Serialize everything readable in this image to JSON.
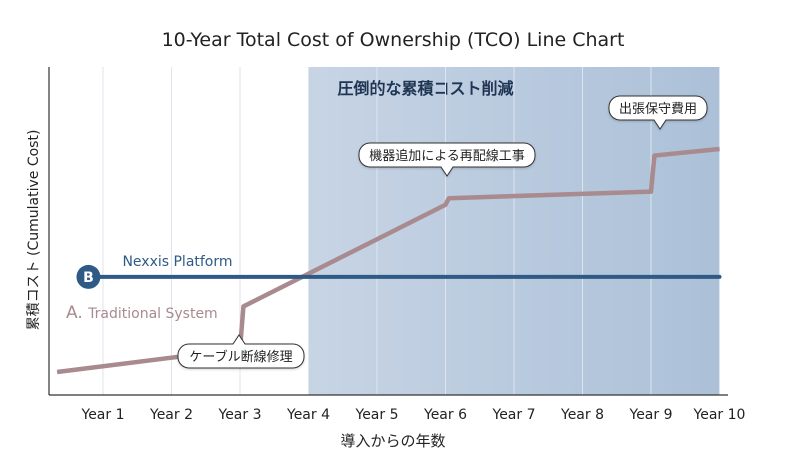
{
  "chart_data": {
    "type": "line",
    "title": "10-Year Total Cost of Ownership (TCO) Line Chart",
    "xlabel": "導入からの年数",
    "ylabel": "累積コスト (Cumulative Cost)",
    "categories": [
      "Year 1",
      "Year 2",
      "Year 3",
      "Year 4",
      "Year 5",
      "Year 6",
      "Year 7",
      "Year 8",
      "Year 9",
      "Year 10"
    ],
    "xlim": [
      0.33,
      10
    ],
    "ylim": [
      0,
      100
    ],
    "grid": "vertical",
    "series": [
      {
        "name": "Nexxis Platform",
        "marker": "B",
        "color": "#2f5a85",
        "points": [
          [
            0.7,
            36
          ],
          [
            10,
            36
          ]
        ]
      },
      {
        "name": "Traditional System",
        "marker": "A.",
        "color": "#a88a8f",
        "points": [
          [
            0.33,
            7
          ],
          [
            3.0,
            14
          ],
          [
            3.05,
            27
          ],
          [
            6.0,
            58
          ],
          [
            6.05,
            60
          ],
          [
            9.0,
            62
          ],
          [
            9.05,
            73
          ],
          [
            10,
            75
          ]
        ]
      }
    ],
    "highlight": {
      "x_start": 4,
      "x_end": 10,
      "label": "圧倒的な累積コスト削減",
      "color": "#a9bfd8"
    },
    "annotations": [
      {
        "text": "ケーブル断線修理",
        "x": 3
      },
      {
        "text": "機器追加による再配線工事",
        "x": 6
      },
      {
        "text": "出張保守費用",
        "x": 9
      }
    ]
  }
}
